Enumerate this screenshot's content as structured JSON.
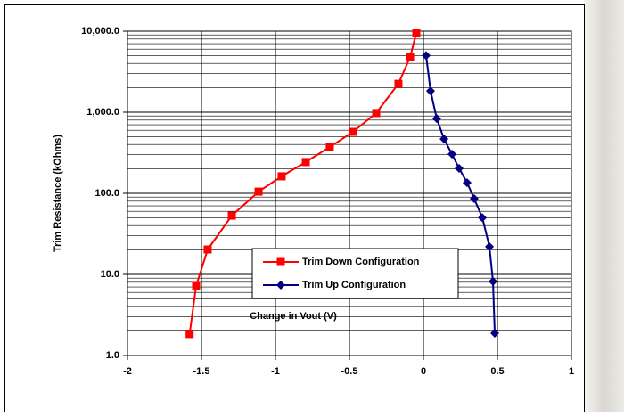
{
  "chart_data": {
    "type": "line",
    "x_label": "Change in Vout (V)",
    "y_label": "Trim Resistance (kOhms)",
    "xlim": [
      -2,
      1
    ],
    "xticks": [
      -2,
      -1.5,
      -1,
      -0.5,
      0,
      0.5,
      1
    ],
    "ylim": [
      1,
      10000
    ],
    "log_y": true,
    "grid": true,
    "minor_grid": true,
    "yticks": [
      {
        "value": 1,
        "label": "1.0"
      },
      {
        "value": 10,
        "label": "10.0"
      },
      {
        "value": 100,
        "label": "100.0"
      },
      {
        "value": 1000,
        "label": "1,000.0"
      },
      {
        "value": 10000,
        "label": "10,000.0"
      }
    ],
    "series": [
      {
        "name": "Trim Down Configuration",
        "color": "#ff0000",
        "marker": "square",
        "x": [
          -1.58,
          -1.536,
          -1.458,
          -1.295,
          -1.114,
          -0.958,
          -0.795,
          -0.633,
          -0.476,
          -0.319,
          -0.169,
          -0.09,
          -0.048
        ],
        "values": [
          1.84,
          7.2,
          20.3,
          53,
          105,
          162,
          243,
          372,
          573,
          977,
          2240,
          4800,
          9500
        ]
      },
      {
        "name": "Trim Up Configuration",
        "color": "#000080",
        "marker": "diamond",
        "x": [
          0.018,
          0.048,
          0.09,
          0.139,
          0.193,
          0.241,
          0.295,
          0.343,
          0.398,
          0.446,
          0.47,
          0.482
        ],
        "values": [
          5000,
          1830,
          835,
          468,
          304,
          203,
          135,
          86,
          50,
          22,
          8.2,
          1.88
        ]
      }
    ]
  }
}
